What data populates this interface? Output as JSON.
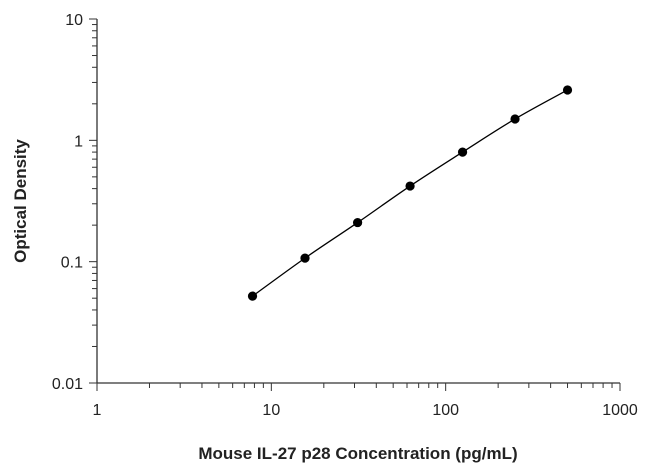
{
  "chart_data": {
    "type": "scatter",
    "xlabel": "Mouse IL-27 p28 Concentration (pg/mL)",
    "ylabel": "Optical Density",
    "x_scale": "log",
    "y_scale": "log",
    "xlim": [
      1,
      1000
    ],
    "ylim": [
      0.01,
      10
    ],
    "x_ticks": [
      1,
      10,
      100,
      1000
    ],
    "x_tick_labels": [
      "1",
      "10",
      "100",
      "1000"
    ],
    "y_ticks": [
      0.01,
      0.1,
      1,
      10
    ],
    "y_tick_labels": [
      "0.01",
      "0.1",
      "1",
      "10"
    ],
    "grid": false,
    "legend": "none",
    "fit_line": true,
    "series": [
      {
        "x": [
          7.8,
          15.6,
          31.25,
          62.5,
          125,
          250,
          500
        ],
        "y": [
          0.052,
          0.107,
          0.21,
          0.42,
          0.8,
          1.5,
          2.6
        ]
      }
    ],
    "colors": {
      "marker": "#000000",
      "line": "#000000",
      "axis": "#333333"
    }
  }
}
